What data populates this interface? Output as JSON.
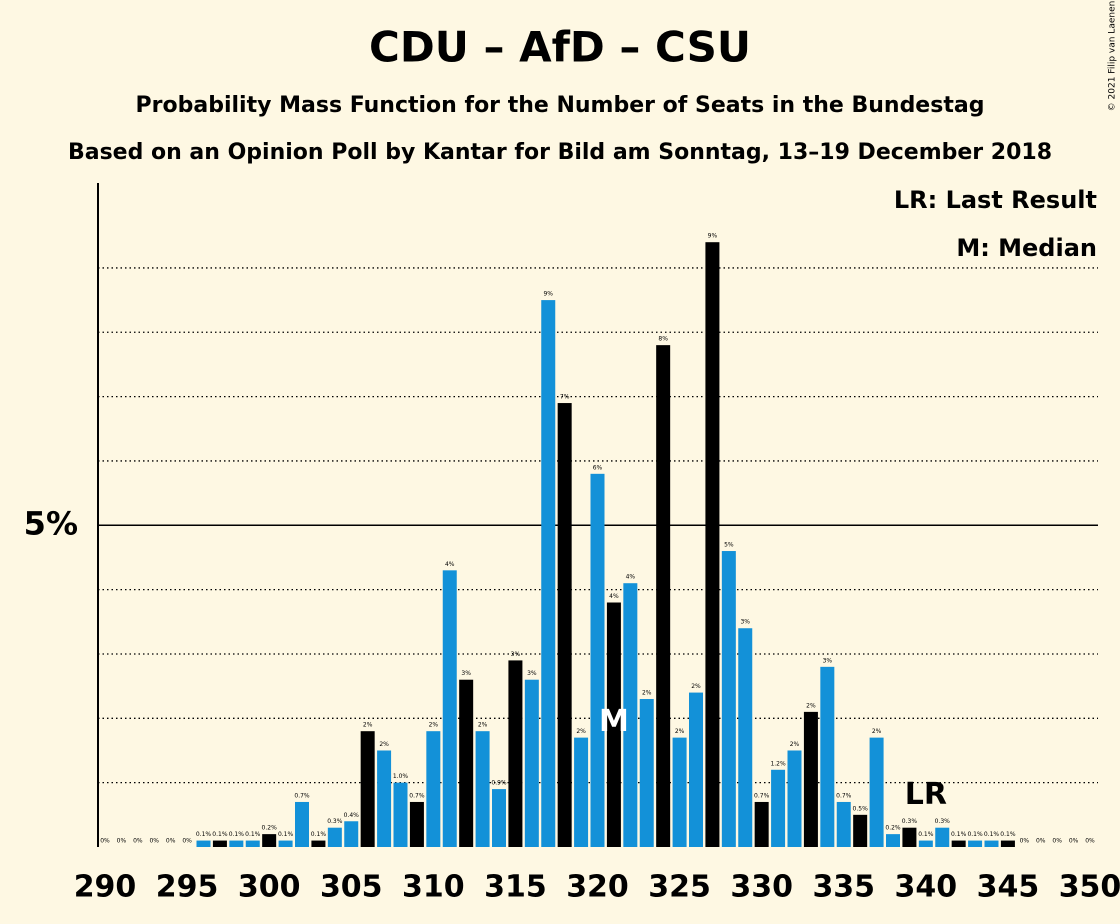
{
  "chart_data": {
    "type": "bar",
    "title": "CDU – AfD – CSU",
    "subtitle": "Probability Mass Function for the Number of Seats in the Bundestag",
    "subtitle2": "Based on an Opinion Poll by Kantar for Bild am Sonntag, 13–19 December 2018",
    "credit": "© 2021 Filip van Laenen",
    "legend": [
      "LR: Last Result",
      "M: Median"
    ],
    "x": [
      290,
      291,
      292,
      293,
      294,
      295,
      296,
      297,
      298,
      299,
      300,
      301,
      302,
      303,
      304,
      305,
      306,
      307,
      308,
      309,
      310,
      311,
      312,
      313,
      314,
      315,
      316,
      317,
      318,
      319,
      320,
      321,
      322,
      323,
      324,
      325,
      326,
      327,
      328,
      329,
      330,
      331,
      332,
      333,
      334,
      335,
      336,
      337,
      338,
      339,
      340,
      341,
      342,
      343,
      344,
      345,
      346,
      347,
      348,
      349,
      350
    ],
    "values": [
      0,
      0,
      0,
      0,
      0,
      0,
      0.1,
      0.1,
      0.1,
      0.1,
      0.2,
      0.1,
      0.7,
      0.1,
      0.3,
      0.4,
      1.8,
      1.5,
      1.0,
      0.7,
      1.8,
      4.3,
      2.6,
      1.8,
      0.9,
      2.9,
      2.6,
      8.5,
      6.9,
      1.7,
      5.8,
      3.8,
      4.1,
      2.3,
      7.8,
      1.7,
      2.4,
      9.4,
      4.6,
      3.4,
      0.7,
      1.2,
      1.5,
      2.1,
      2.8,
      0.7,
      0.5,
      1.7,
      0.2,
      0.3,
      0.1,
      0.3,
      0.1,
      0.1,
      0.1,
      0.1,
      0,
      0,
      0,
      0,
      0
    ],
    "value_labels": [
      "0%",
      "0%",
      "0%",
      "0%",
      "0%",
      "0%",
      "0.1%",
      "0.1%",
      "0.1%",
      "0.1%",
      "0.2%",
      "0.1%",
      "0.7%",
      "0.1%",
      "0.3%",
      "0.4%",
      "2%",
      "2%",
      "1.0%",
      "0.7%",
      "2%",
      "4%",
      "3%",
      "2%",
      "0.9%",
      "3%",
      "3%",
      "9%",
      "7%",
      "2%",
      "6%",
      "4%",
      "4%",
      "2%",
      "8%",
      "2%",
      "2%",
      "9%",
      "5%",
      "3%",
      "0.7%",
      "1.2%",
      "2%",
      "2%",
      "3%",
      "0.7%",
      "0.5%",
      "2%",
      "0.2%",
      "0.3%",
      "0.1%",
      "0.3%",
      "0.1%",
      "0.1%",
      "0.1%",
      "0.1%",
      "0%",
      "0%",
      "0%",
      "0%",
      "0%"
    ],
    "colors": [
      "#1391d8",
      "#1391d8",
      "#1391d8",
      "#000000",
      "#1391d8",
      "#1391d8",
      "#1391d8",
      "#000000",
      "#1391d8",
      "#1391d8",
      "#000000",
      "#1391d8",
      "#1391d8",
      "#000000",
      "#1391d8",
      "#1391d8",
      "#000000",
      "#1391d8",
      "#1391d8",
      "#000000",
      "#1391d8",
      "#1391d8",
      "#000000",
      "#1391d8",
      "#1391d8",
      "#000000",
      "#1391d8",
      "#1391d8",
      "#000000",
      "#1391d8",
      "#1391d8",
      "#000000",
      "#1391d8",
      "#1391d8",
      "#000000",
      "#1391d8",
      "#1391d8",
      "#000000",
      "#1391d8",
      "#1391d8",
      "#000000",
      "#1391d8",
      "#1391d8",
      "#000000",
      "#1391d8",
      "#1391d8",
      "#000000",
      "#1391d8",
      "#1391d8",
      "#000000",
      "#1391d8",
      "#1391d8",
      "#000000",
      "#1391d8",
      "#1391d8",
      "#000000",
      "#1391d8",
      "#1391d8",
      "#000000",
      "#1391d8",
      "#1391d8"
    ],
    "annotations": [
      {
        "x": 321,
        "label": "M"
      },
      {
        "x": 340,
        "label": "LR"
      }
    ],
    "xlim": [
      290,
      350
    ],
    "xticks": [
      290,
      295,
      300,
      305,
      310,
      315,
      320,
      325,
      330,
      335,
      340,
      345,
      350
    ],
    "ylim": [
      0,
      10.32
    ],
    "yticks": [
      {
        "value": 5,
        "label": "5%"
      }
    ],
    "minor_gridlines": [
      1,
      2,
      3,
      4,
      6,
      7,
      8,
      9
    ]
  }
}
